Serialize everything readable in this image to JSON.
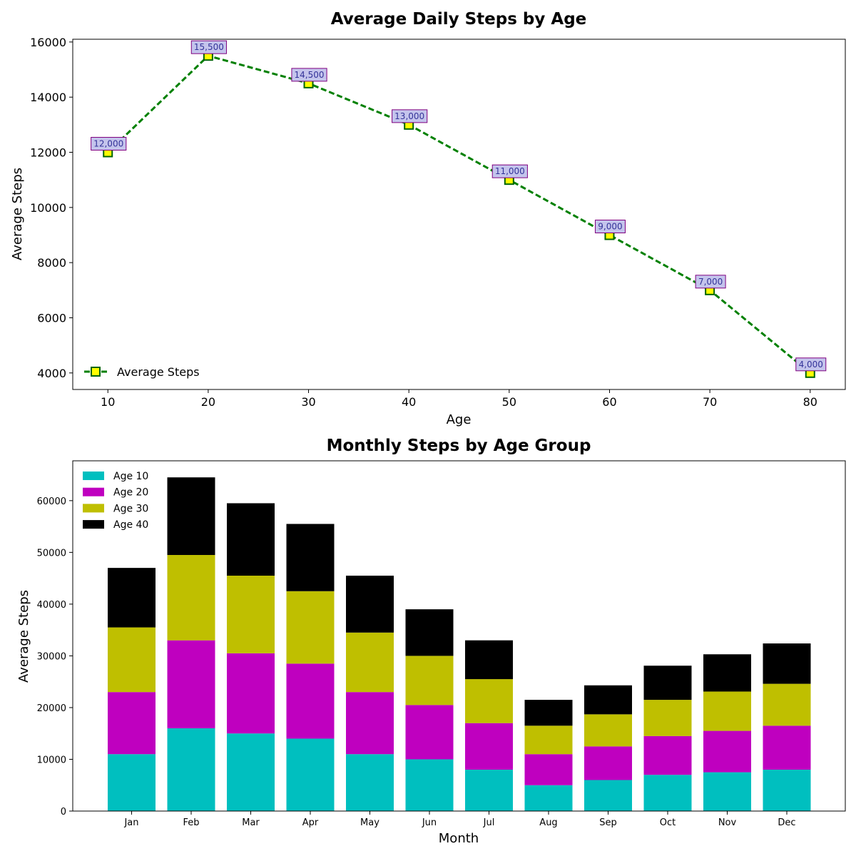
{
  "chart_data": [
    {
      "type": "line",
      "title": "Average Daily Steps by Age",
      "xlabel": "Age",
      "ylabel": "Average Steps",
      "xlim": [
        6.5,
        83.5
      ],
      "ylim": [
        3400,
        16100
      ],
      "xticks": [
        10,
        20,
        30,
        40,
        50,
        60,
        70,
        80
      ],
      "yticks": [
        4000,
        6000,
        8000,
        10000,
        12000,
        14000,
        16000
      ],
      "x": [
        10,
        20,
        30,
        40,
        50,
        60,
        70,
        80
      ],
      "series": [
        {
          "name": "Average Steps",
          "values": [
            12000,
            15500,
            14500,
            13000,
            11000,
            9000,
            7000,
            4000
          ],
          "data_labels": [
            "12,000",
            "15,500",
            "14,500",
            "13,000",
            "11,000",
            "9,000",
            "7,000",
            "4,000"
          ],
          "line_color": "#008000",
          "marker_fill": "#ffff00",
          "marker_edge": "#006400",
          "line_style": "dashed",
          "marker": "square"
        }
      ],
      "label_box_fill": "#c4c4ec",
      "label_box_edge": "#800080",
      "legend_position": "lower-left",
      "grid": false
    },
    {
      "type": "bar",
      "stacked": true,
      "title": "Monthly Steps by Age Group",
      "xlabel": "Month",
      "ylabel": "Average Steps",
      "ylim": [
        0,
        67700
      ],
      "yticks": [
        0,
        10000,
        20000,
        30000,
        40000,
        50000,
        60000
      ],
      "categories": [
        "Jan",
        "Feb",
        "Mar",
        "Apr",
        "May",
        "Jun",
        "Jul",
        "Aug",
        "Sep",
        "Oct",
        "Nov",
        "Dec"
      ],
      "series": [
        {
          "name": "Age 10",
          "color": "#00bfbf",
          "values": [
            11000,
            16000,
            15000,
            14000,
            11000,
            10000,
            8000,
            5000,
            6000,
            7000,
            7500,
            8000
          ]
        },
        {
          "name": "Age 20",
          "color": "#bf00bf",
          "values": [
            12000,
            17000,
            15500,
            14500,
            12000,
            10500,
            9000,
            6000,
            6500,
            7500,
            8000,
            8500
          ]
        },
        {
          "name": "Age 30",
          "color": "#bfbf00",
          "values": [
            12500,
            16500,
            15000,
            14000,
            11500,
            9500,
            8500,
            5500,
            6200,
            7000,
            7600,
            8100
          ]
        },
        {
          "name": "Age 40",
          "color": "#000000",
          "values": [
            11500,
            15000,
            14000,
            13000,
            11000,
            9000,
            7500,
            5000,
            5600,
            6600,
            7200,
            7800
          ]
        }
      ],
      "legend_position": "upper-left",
      "grid": false
    }
  ]
}
